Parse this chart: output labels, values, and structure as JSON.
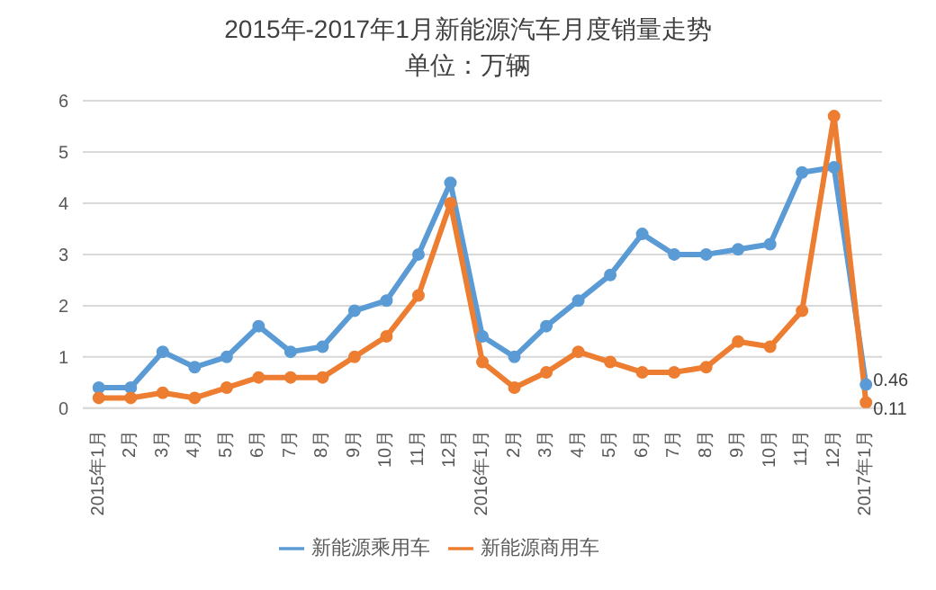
{
  "chart_data": {
    "type": "line",
    "title": "2015年-2017年1月新能源汽车月度销量走势",
    "subtitle": "单位：万辆",
    "categories": [
      "2015年1月",
      "2月",
      "3月",
      "4月",
      "5月",
      "6月",
      "7月",
      "8月",
      "9月",
      "10月",
      "11月",
      "12月",
      "2016年1月",
      "2月",
      "3月",
      "4月",
      "5月",
      "6月",
      "7月",
      "8月",
      "9月",
      "10月",
      "11月",
      "12月",
      "2017年1月"
    ],
    "series": [
      {
        "name": "新能源乘用车",
        "color": "#5b9bd5",
        "values": [
          0.4,
          0.4,
          1.1,
          0.8,
          1.0,
          1.6,
          1.1,
          1.2,
          1.9,
          2.1,
          3.0,
          4.4,
          1.4,
          1.0,
          1.6,
          2.1,
          2.6,
          3.4,
          3.0,
          3.0,
          3.1,
          3.2,
          4.6,
          4.7,
          0.46
        ],
        "value_labels": [
          null,
          null,
          null,
          null,
          null,
          null,
          null,
          null,
          null,
          null,
          null,
          null,
          null,
          null,
          null,
          null,
          null,
          null,
          null,
          null,
          null,
          null,
          null,
          null,
          "0.46"
        ]
      },
      {
        "name": "新能源商用车",
        "color": "#ed7d31",
        "values": [
          0.2,
          0.2,
          0.3,
          0.2,
          0.4,
          0.6,
          0.6,
          0.6,
          1.0,
          1.4,
          2.2,
          4.0,
          0.9,
          0.4,
          0.7,
          1.1,
          0.9,
          0.7,
          0.7,
          0.8,
          1.3,
          1.2,
          1.9,
          5.7,
          0.11
        ],
        "value_labels": [
          null,
          null,
          null,
          null,
          null,
          null,
          null,
          null,
          null,
          null,
          null,
          null,
          null,
          null,
          null,
          null,
          null,
          null,
          null,
          null,
          null,
          null,
          null,
          null,
          "0.11"
        ]
      }
    ],
    "ylim": [
      0,
      6
    ],
    "yticks": [
      0,
      1,
      2,
      3,
      4,
      5,
      6
    ],
    "grid": "y",
    "legend": "bottom",
    "marker": "circle",
    "line_style": "solid"
  }
}
